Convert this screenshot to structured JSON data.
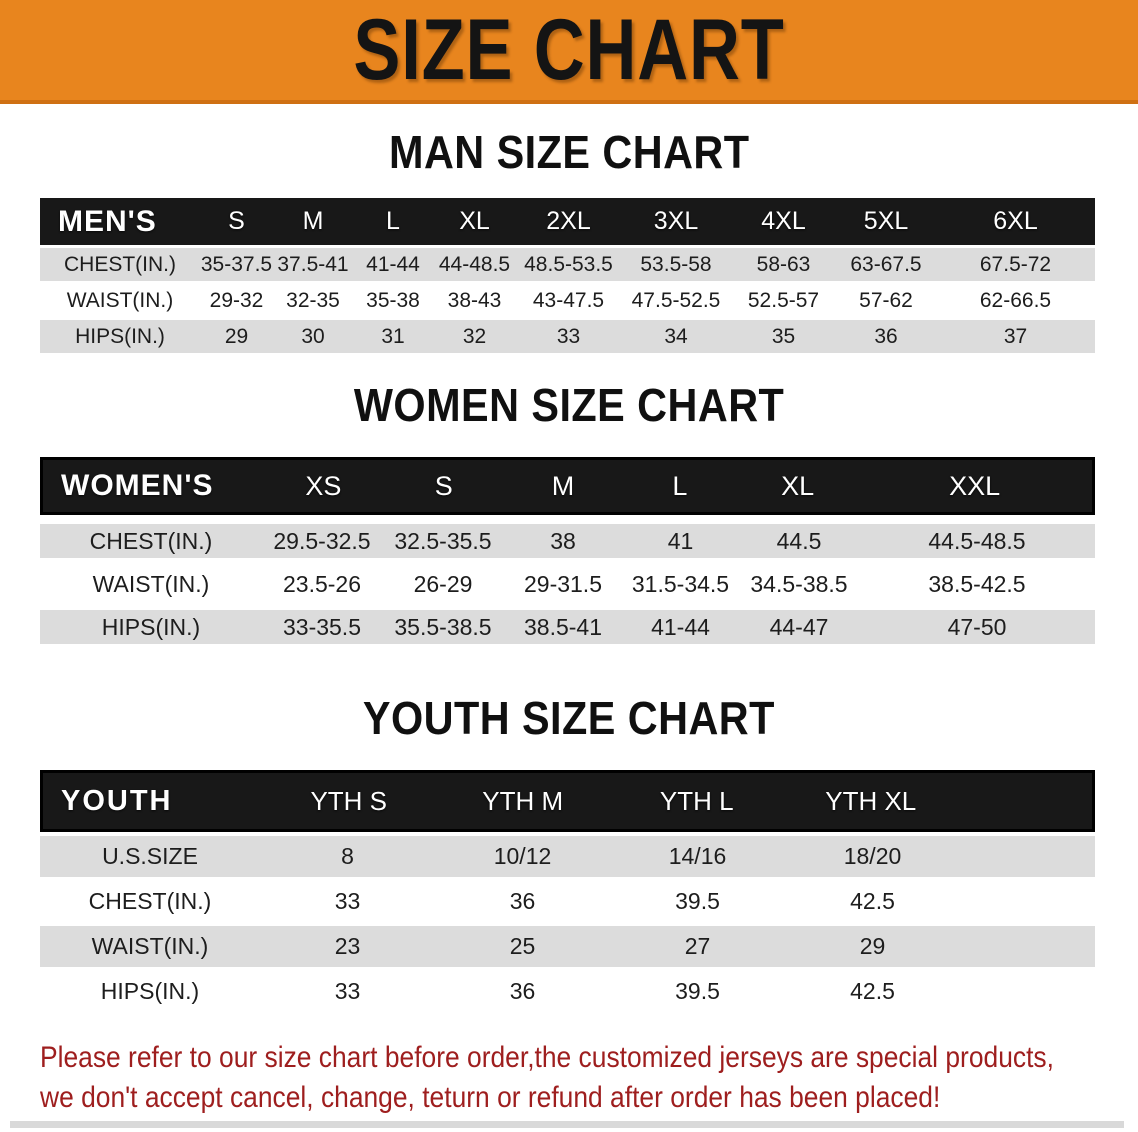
{
  "banner": {
    "title": "SIZE CHART",
    "bg_color": "#E8851E"
  },
  "colors": {
    "header_bar": "#181818",
    "row_gray": "#DCDCDC",
    "row_white": "#FFFFFF",
    "footer_text": "#9E1E1E"
  },
  "sections": {
    "men": {
      "heading": "MAN SIZE CHART",
      "table": {
        "header": [
          "MEN'S",
          "S",
          "M",
          "L",
          "XL",
          "2XL",
          "3XL",
          "4XL",
          "5XL",
          "6XL"
        ],
        "rows": [
          {
            "label": "CHEST(IN.)",
            "values": [
              "35-37.5",
              "37.5-41",
              "41-44",
              "44-48.5",
              "48.5-53.5",
              "53.5-58",
              "58-63",
              "63-67.5",
              "67.5-72"
            ]
          },
          {
            "label": "WAIST(IN.)",
            "values": [
              "29-32",
              "32-35",
              "35-38",
              "38-43",
              "43-47.5",
              "47.5-52.5",
              "52.5-57",
              "57-62",
              "62-66.5"
            ]
          },
          {
            "label": "HIPS(IN.)",
            "values": [
              "29",
              "30",
              "31",
              "32",
              "33",
              "34",
              "35",
              "36",
              "37"
            ]
          }
        ]
      }
    },
    "women": {
      "heading": "WOMEN SIZE CHART",
      "table": {
        "header": [
          "WOMEN'S",
          "XS",
          "S",
          "M",
          "L",
          "XL",
          "XXL"
        ],
        "rows": [
          {
            "label": "CHEST(IN.)",
            "values": [
              "29.5-32.5",
              "32.5-35.5",
              "38",
              "41",
              "44.5",
              "44.5-48.5"
            ]
          },
          {
            "label": "WAIST(IN.)",
            "values": [
              "23.5-26",
              "26-29",
              "29-31.5",
              "31.5-34.5",
              "34.5-38.5",
              "38.5-42.5"
            ]
          },
          {
            "label": "HIPS(IN.)",
            "values": [
              "33-35.5",
              "35.5-38.5",
              "38.5-41",
              "41-44",
              "44-47",
              "47-50"
            ]
          }
        ]
      }
    },
    "youth": {
      "heading": "YOUTH SIZE CHART",
      "table": {
        "header": [
          "YOUTH",
          "YTH S",
          "YTH M",
          "YTH L",
          "YTH XL"
        ],
        "rows": [
          {
            "label": "U.S.SIZE",
            "values": [
              "8",
              "10/12",
              "14/16",
              "18/20"
            ]
          },
          {
            "label": "CHEST(IN.)",
            "values": [
              "33",
              "36",
              "39.5",
              "42.5"
            ]
          },
          {
            "label": "WAIST(IN.)",
            "values": [
              "23",
              "25",
              "27",
              "29"
            ]
          },
          {
            "label": "HIPS(IN.)",
            "values": [
              "33",
              "36",
              "39.5",
              "42.5"
            ]
          }
        ]
      }
    }
  },
  "footer": {
    "line1": "Please refer to our size chart before order,the customized jerseys are special products,",
    "line2": "we don't accept cancel, change, teturn or refund after order has been placed!"
  }
}
